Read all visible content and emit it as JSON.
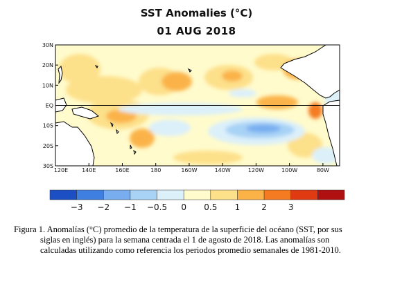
{
  "chart_data": {
    "type": "heatmap",
    "title": "SST Anomalies (°C)",
    "subtitle": "01 AUG 2018",
    "y_ticks": [
      "30N",
      "20N",
      "10N",
      "EQ",
      "10S",
      "20S",
      "30S"
    ],
    "x_ticks": [
      "120E",
      "140E",
      "160E",
      "180",
      "160W",
      "140W",
      "120W",
      "100W",
      "80W"
    ],
    "xlim": [
      120,
      290
    ],
    "ylim": [
      -30,
      30
    ],
    "grid": false,
    "colorbar": {
      "colors": [
        "#1d4fc4",
        "#3f7fe0",
        "#78aef0",
        "#a8d2f6",
        "#dcf0fa",
        "#fffbcc",
        "#fde08a",
        "#fbb348",
        "#f57b22",
        "#e03a12",
        "#b01010"
      ],
      "labels": [
        "−3",
        "−2",
        "−1",
        "−0.5",
        "0",
        "0.5",
        "1",
        "2",
        "3"
      ]
    }
  },
  "caption": {
    "line1": "Figura 1. Anomalías (°C) promedio de la temperatura de la superficie del océano (SST, por sus",
    "line2": "siglas en inglés) para la semana centrada el 1 de agosto de 2018. Las anomalías son",
    "line3": "calculadas utilizando como referencia los periodos promedio semanales de 1981-2010."
  }
}
